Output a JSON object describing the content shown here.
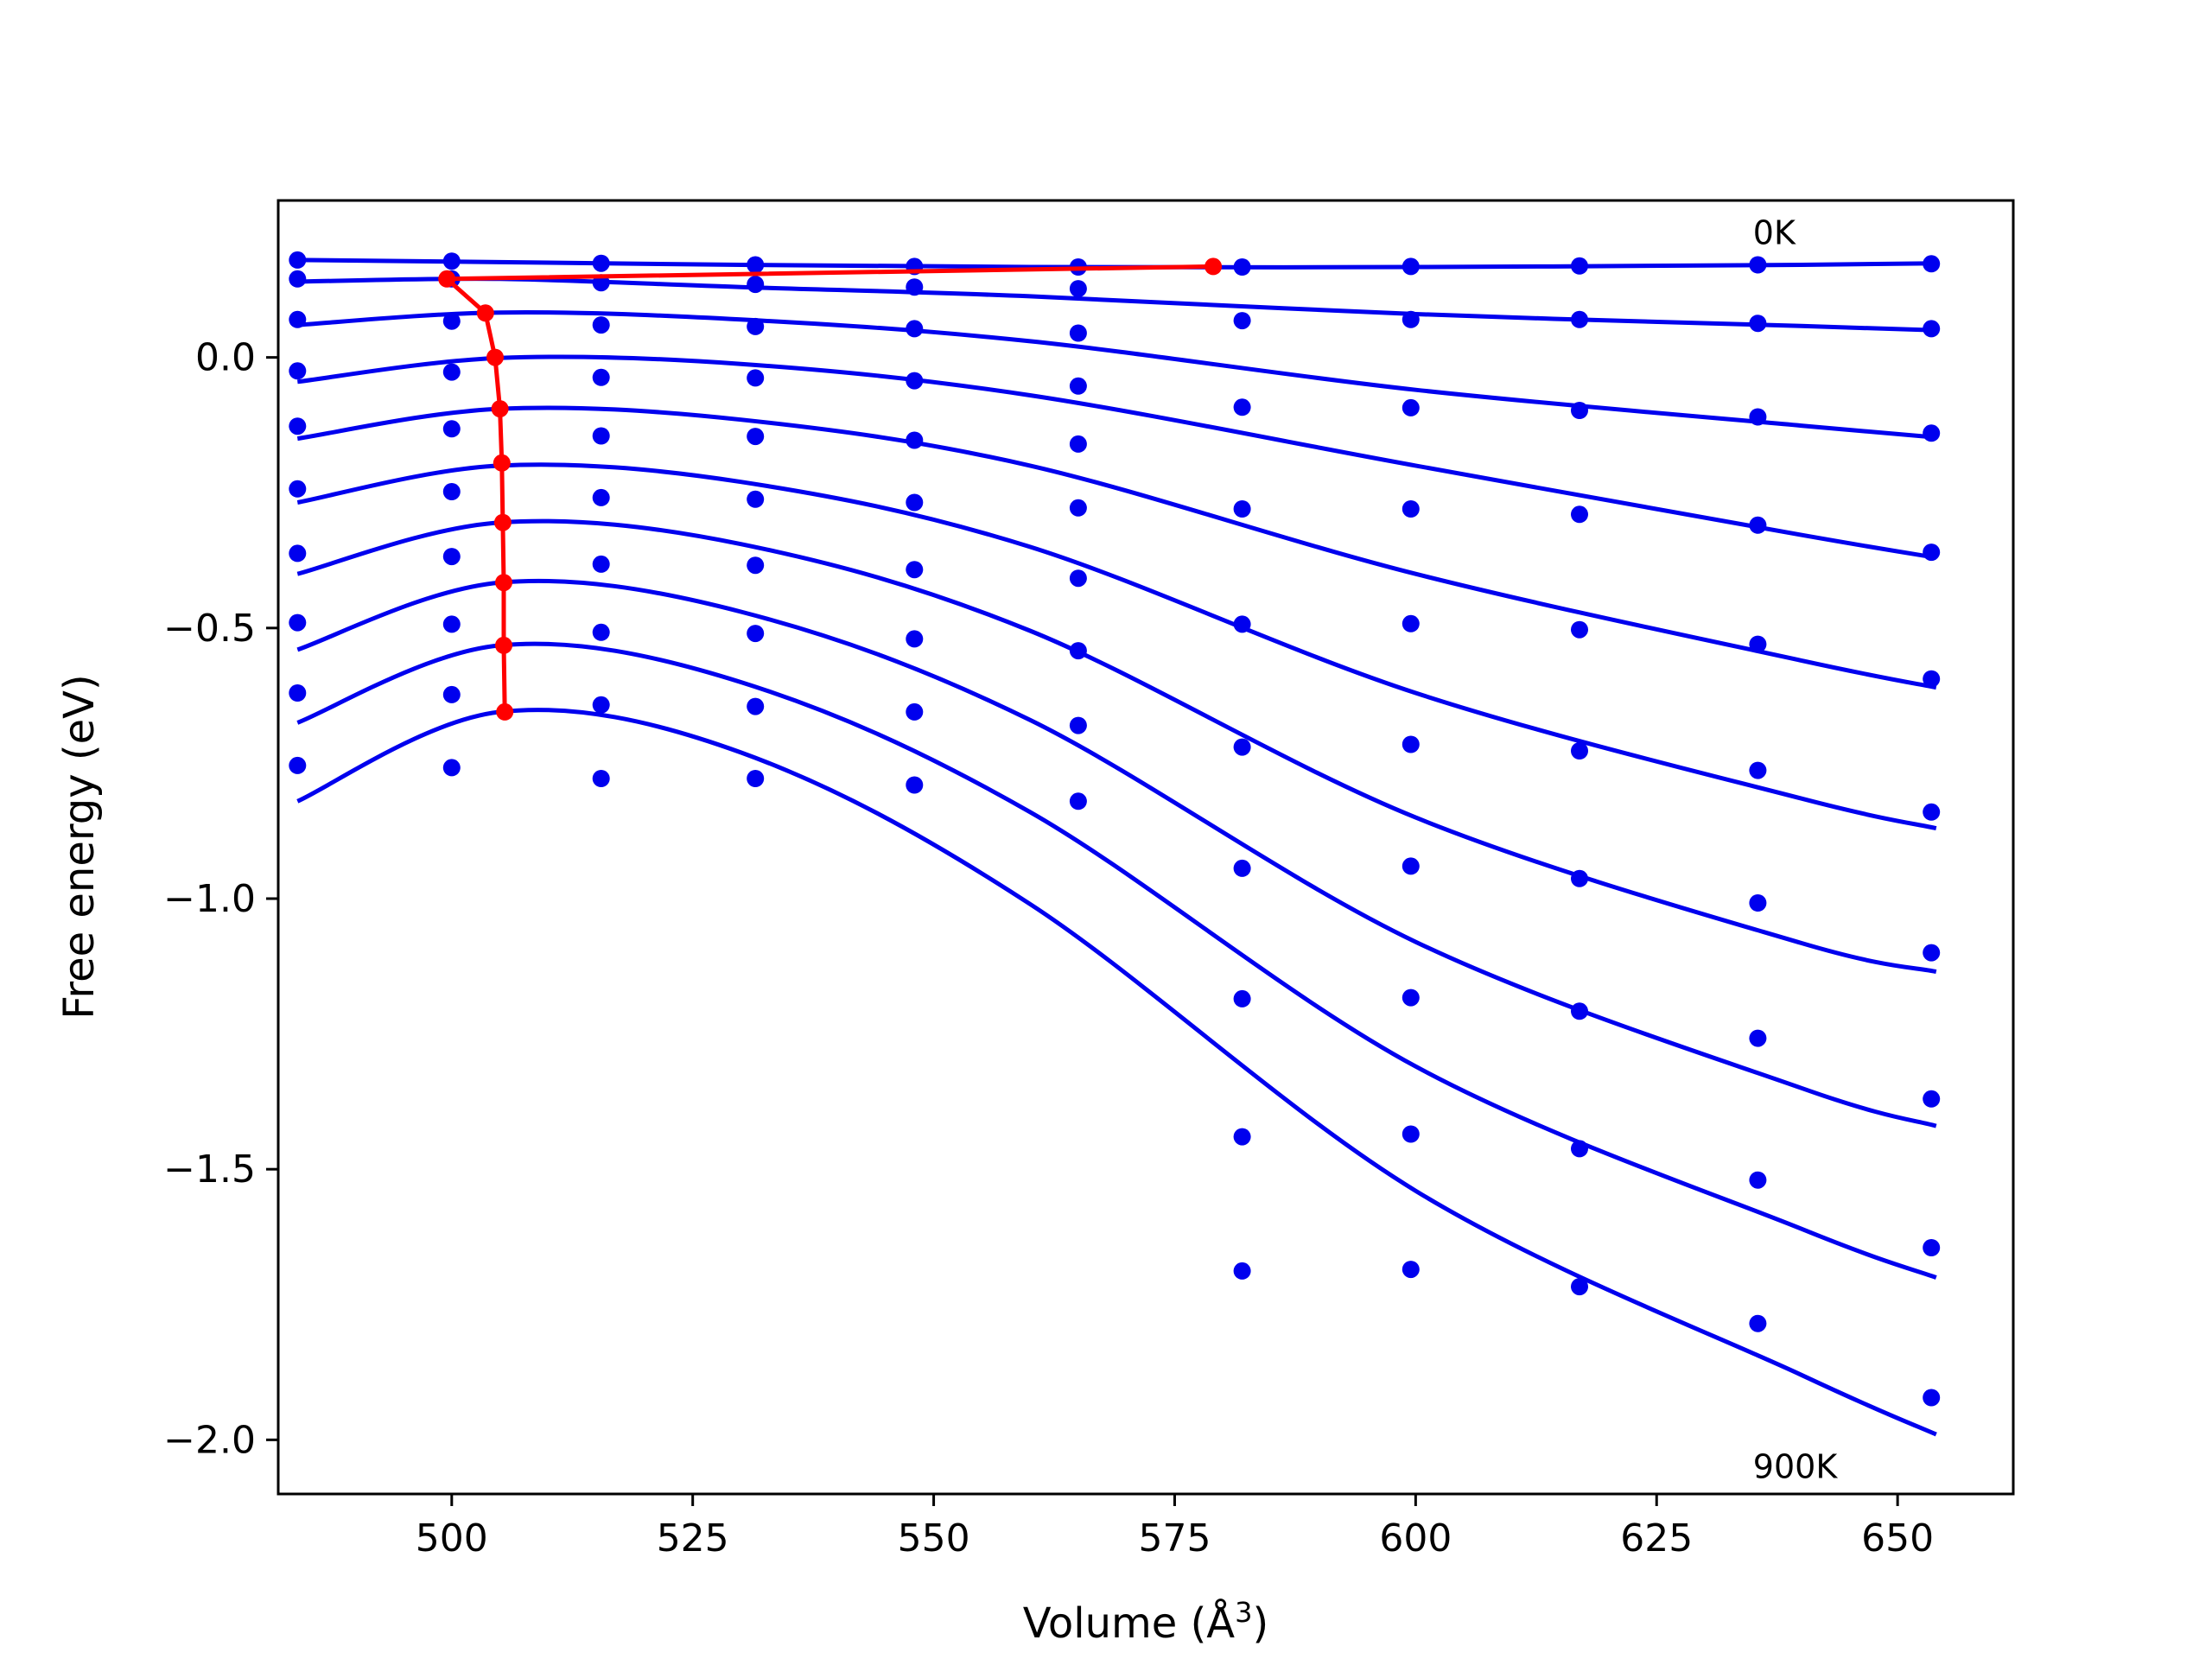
{
  "chart_data": {
    "type": "line",
    "xlabel": "Volume (Å",
    "xlabel_sup": "3",
    "xlabel_close": ")",
    "ylabel": "Free energy (eV)",
    "xlim": [
      482,
      662
    ],
    "ylim": [
      -2.1,
      0.29
    ],
    "x_ticks": [
      500,
      525,
      550,
      575,
      600,
      625,
      650
    ],
    "x_tick_labels": [
      "500",
      "525",
      "550",
      "575",
      "600",
      "625",
      "650"
    ],
    "y_ticks": [
      0.0,
      -0.5,
      -1.0,
      -1.5,
      -2.0
    ],
    "y_tick_labels": [
      "0.0",
      "−0.5",
      "−1.0",
      "−1.5",
      "−2.0"
    ],
    "grid": false,
    "colors": {
      "fit": "#0000ee",
      "points": "#0000ee",
      "minima": "#ff0000"
    },
    "annotations": [
      {
        "text": "0K",
        "x": 635,
        "y": 0.23
      },
      {
        "text": "900K",
        "x": 635,
        "y": -2.05
      }
    ],
    "volumes": [
      484,
      500,
      515.5,
      531.5,
      548,
      565,
      582,
      599.5,
      617,
      635.5,
      653.5
    ],
    "data_points": [
      [
        0.18,
        0.178,
        0.174,
        0.171,
        0.168,
        0.167,
        0.167,
        0.168,
        0.169,
        0.171,
        0.173
      ],
      [
        0.145,
        0.145,
        0.138,
        0.135,
        0.13,
        0.127,
        0.068,
        0.07,
        0.07,
        0.063,
        0.053
      ],
      [
        0.07,
        0.067,
        0.06,
        0.057,
        0.053,
        0.045,
        -0.092,
        -0.093,
        -0.098,
        -0.11,
        -0.14
      ],
      [
        -0.025,
        -0.027,
        -0.037,
        -0.038,
        -0.043,
        -0.053,
        -0.28,
        -0.28,
        -0.29,
        -0.31,
        -0.36
      ],
      [
        -0.127,
        -0.132,
        -0.145,
        -0.146,
        -0.153,
        -0.16,
        -0.493,
        -0.492,
        -0.503,
        -0.53,
        -0.594
      ],
      [
        -0.243,
        -0.248,
        -0.259,
        -0.262,
        -0.268,
        -0.278,
        -0.72,
        -0.715,
        -0.727,
        -0.763,
        -0.84
      ],
      [
        -0.362,
        -0.368,
        -0.382,
        -0.384,
        -0.392,
        -0.408,
        -0.944,
        -0.94,
        -0.963,
        -1.008,
        -1.1
      ],
      [
        -0.49,
        -0.493,
        -0.508,
        -0.51,
        -0.52,
        -0.542,
        -1.185,
        -1.183,
        -1.208,
        -1.258,
        -1.37
      ],
      [
        -0.62,
        -0.623,
        -0.642,
        -0.645,
        -0.655,
        -0.68,
        -1.44,
        -1.435,
        -1.462,
        -1.52,
        -1.645
      ],
      [
        -0.754,
        -0.758,
        -0.778,
        -0.778,
        -0.79,
        -0.82,
        -1.688,
        -1.685,
        -1.717,
        -1.785,
        -1.922
      ]
    ],
    "fit_curves": [
      {
        "x": [
          484,
          505,
          530,
          560,
          600,
          640,
          654
        ],
        "y": [
          0.18,
          0.176,
          0.171,
          0.167,
          0.167,
          0.171,
          0.174
        ]
      },
      {
        "x": [
          484,
          505,
          530,
          560,
          600,
          640,
          654
        ],
        "y": [
          0.14,
          0.145,
          0.13,
          0.113,
          0.08,
          0.058,
          0.05
        ]
      },
      {
        "x": [
          484,
          505,
          530,
          560,
          600,
          640,
          654
        ],
        "y": [
          0.06,
          0.083,
          0.07,
          0.03,
          -0.06,
          -0.126,
          -0.148
        ]
      },
      {
        "x": [
          484,
          505,
          530,
          560,
          600,
          640,
          654
        ],
        "y": [
          -0.045,
          -0.001,
          -0.012,
          -0.07,
          -0.2,
          -0.328,
          -0.37
        ]
      },
      {
        "x": [
          484,
          505,
          530,
          560,
          600,
          640,
          654
        ],
        "y": [
          -0.15,
          -0.095,
          -0.115,
          -0.2,
          -0.4,
          -0.56,
          -0.61
        ]
      },
      {
        "x": [
          484,
          505,
          530,
          560,
          600,
          640,
          654
        ],
        "y": [
          -0.268,
          -0.2,
          -0.23,
          -0.35,
          -0.62,
          -0.815,
          -0.87
        ]
      },
      {
        "x": [
          484,
          505,
          530,
          560,
          600,
          640,
          654
        ],
        "y": [
          -0.4,
          -0.305,
          -0.345,
          -0.505,
          -0.85,
          -1.082,
          -1.135
        ]
      },
      {
        "x": [
          484,
          505,
          530,
          560,
          600,
          640,
          654
        ],
        "y": [
          -0.54,
          -0.416,
          -0.47,
          -0.67,
          -1.08,
          -1.35,
          -1.42
        ]
      },
      {
        "x": [
          484,
          505,
          530,
          560,
          600,
          640,
          654
        ],
        "y": [
          -0.675,
          -0.532,
          -0.6,
          -0.84,
          -1.31,
          -1.61,
          -1.7
        ]
      },
      {
        "x": [
          484,
          505,
          530,
          560,
          600,
          640,
          654
        ],
        "y": [
          -0.82,
          -0.655,
          -0.73,
          -1.01,
          -1.54,
          -1.88,
          -1.99
        ]
      }
    ],
    "minima_path": {
      "x": [
        579,
        499.5,
        503.5,
        504.5,
        505,
        505.2,
        505.3,
        505.4,
        505.4,
        505.5
      ],
      "y": [
        0.168,
        0.145,
        0.082,
        0.0,
        -0.095,
        -0.195,
        -0.305,
        -0.416,
        -0.532,
        -0.655
      ]
    }
  }
}
